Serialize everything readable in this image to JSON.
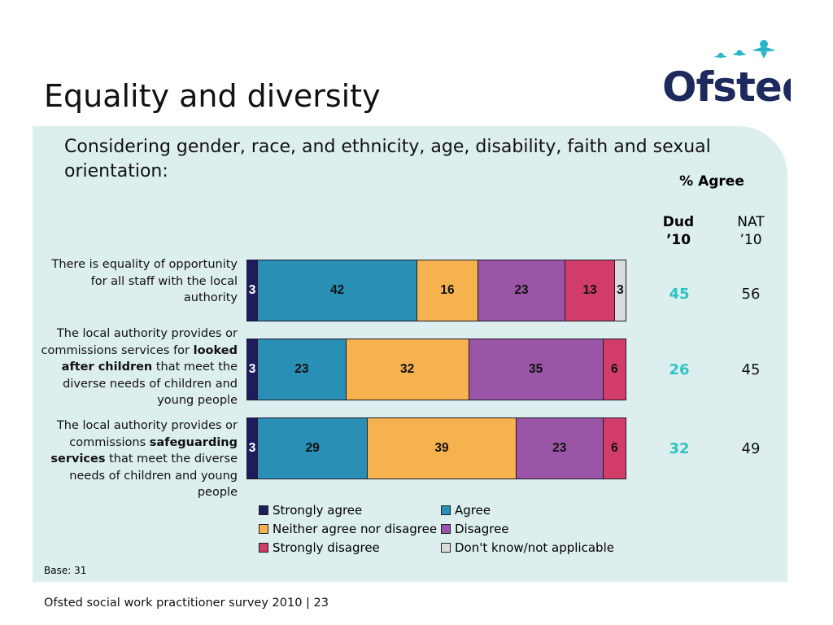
{
  "slide": {
    "title": "Equality and diversity",
    "logo_text": "Ofsted",
    "subtitle": "Considering gender, race, and ethnicity, age, disability, faith and sexual orientation:",
    "agree_header": "% Agree",
    "dud_header_line1": "Dud",
    "dud_header_line2": "’10",
    "nat_header_line1": "NAT",
    "nat_header_line2": "’10",
    "base": "Base: 31",
    "footer": "Ofsted social work practitioner survey 2010  |  23"
  },
  "rows": [
    {
      "label_parts": [
        "There is equality of opportunity for all staff with the local authority"
      ],
      "bold": [],
      "dud": "45",
      "nat": "56"
    },
    {
      "label_parts": [
        "The local authority provides or commissions services for ",
        "looked after children",
        " that meet the diverse needs of children and young people"
      ],
      "bold": [
        1
      ],
      "dud": "26",
      "nat": "45"
    },
    {
      "label_parts": [
        "The local authority provides or commissions ",
        "safeguarding services",
        " that meet the diverse needs of children and young people"
      ],
      "bold": [
        1
      ],
      "dud": "32",
      "nat": "49"
    }
  ],
  "chart_data": {
    "type": "bar",
    "orientation": "horizontal-stacked-100",
    "categories": [
      "There is equality of opportunity for all staff with the local authority",
      "The local authority provides or commissions services for looked after children that meet the diverse needs of children and young people",
      "The local authority provides or commissions safeguarding services that meet the diverse needs of children and young people"
    ],
    "series": [
      {
        "name": "Strongly agree",
        "color": "#1e1b5e",
        "label_color": "#ffffff",
        "values": [
          3,
          3,
          3
        ]
      },
      {
        "name": "Agree",
        "color": "#2a8fb4",
        "label_color": "#111111",
        "values": [
          42,
          23,
          29
        ]
      },
      {
        "name": "Neither agree nor disagree",
        "color": "#f5b24e",
        "label_color": "#111111",
        "values": [
          16,
          32,
          39
        ]
      },
      {
        "name": "Disagree",
        "color": "#9a55a6",
        "label_color": "#111111",
        "values": [
          23,
          35,
          23
        ]
      },
      {
        "name": "Strongly disagree",
        "color": "#d23c68",
        "label_color": "#111111",
        "values": [
          13,
          6,
          6
        ]
      },
      {
        "name": "Don't know/not applicable",
        "color": "#dcdcdc",
        "label_color": "#111111",
        "values": [
          3,
          0,
          0
        ]
      }
    ],
    "legend_position": "bottom",
    "grid": false
  }
}
